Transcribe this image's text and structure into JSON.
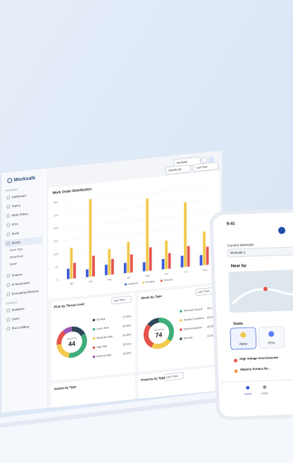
{
  "chart_data": [
    {
      "type": "bar",
      "title": "Work Order Distribution",
      "categories": [
        "Jan",
        "Feb",
        "Mar",
        "Apr",
        "May",
        "Jun",
        "Jul",
        "Aug"
      ],
      "series": [
        {
          "name": "Resolved",
          "color": "#3b5bdb",
          "values": [
            40,
            30,
            40,
            40,
            35,
            40,
            45,
            40
          ]
        },
        {
          "name": "Pending",
          "color": "#f2c94c",
          "values": [
            120,
            300,
            100,
            120,
            280,
            110,
            250,
            130
          ]
        },
        {
          "name": "Overdue",
          "color": "#e5534b",
          "values": [
            60,
            80,
            60,
            70,
            90,
            60,
            80,
            70
          ]
        }
      ],
      "ylim": [
        0,
        300
      ],
      "yticks": [
        0,
        50,
        100,
        150,
        200,
        250,
        300
      ],
      "grid": true
    },
    {
      "type": "donut",
      "title": "PCIs by Threat Level",
      "filter": "Last Three",
      "center_value": 44,
      "center_label": "Total PCIs",
      "categories": [
        "No Risk",
        "Lower Risk",
        "Moderate Risk",
        "High Risk",
        "Extreme Risk"
      ],
      "values": [
        17.05,
        36.36,
        20.45,
        15.91,
        10.23
      ],
      "value_labels": [
        "17.05%",
        "36.36%",
        "20.45%",
        "15.91%",
        "10.23%"
      ],
      "colors": [
        "#2f4858",
        "#3fae7a",
        "#f2c94c",
        "#e5534b",
        "#9b59b6"
      ]
    },
    {
      "type": "donut",
      "title": "Alerts by Type",
      "filter": "Last Three",
      "center_value": 74,
      "center_label": "Total Alerts",
      "categories": [
        "Potential Hazard",
        "Weather Condition",
        "Communications",
        "Security"
      ],
      "values": [
        35.14,
        22.97,
        28.38,
        13.51
      ],
      "value_labels": [
        "35.14%",
        "22.97%",
        "28.38%",
        "13.51%"
      ],
      "colors": [
        "#3fae7a",
        "#f2c94c",
        "#e5534b",
        "#2f4858"
      ]
    }
  ],
  "ui": {
    "brand": "Worksafe",
    "worksite": "Worksite",
    "group_by": "Directly By",
    "period": "Last Year",
    "section1": "WORKERS",
    "items": [
      "Dashboard",
      "Teams",
      "Work Orders",
      "PCIs",
      "Alerts",
      "Assets"
    ],
    "sub_items": [
      "Asset Type",
      "Department",
      "Model"
    ],
    "items2": [
      "Projects",
      "AI Documents",
      "Evacuating Members"
    ],
    "section2": "COMPANY",
    "items3": [
      "Worksites",
      "Users",
      "Plan & Billing"
    ],
    "cards": [
      {
        "title": "Assets by Type",
        "filter": "Last Three"
      },
      {
        "title": "Projects by Type",
        "filter": "Last Year"
      }
    ]
  },
  "phone": {
    "time": "9:41",
    "current": "Current Worksite",
    "worksite": "Worksite 1",
    "nearby": "Near by",
    "tools": "Tools",
    "tiles": [
      "Alerts",
      "PCIs"
    ],
    "alerts": [
      "High Voltage Area Detected",
      "Slippery Surface Re..."
    ],
    "nav": [
      "Home",
      "Alerts"
    ]
  }
}
